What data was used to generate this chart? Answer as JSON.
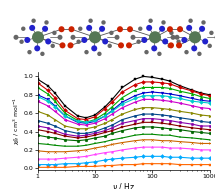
{
  "xlabel": "ν / Hz",
  "ylabel": "χ_M'' / cm³ mol⁻¹",
  "xlim": [
    1,
    1000
  ],
  "ylim": [
    -0.02,
    1.05
  ],
  "background_color": "#ffffff",
  "curves": [
    {
      "color": "#000000",
      "x": [
        1,
        1.5,
        2,
        3,
        5,
        7,
        10,
        15,
        20,
        30,
        50,
        70,
        100,
        150,
        200,
        300,
        500,
        700,
        1000
      ],
      "y": [
        0.97,
        0.9,
        0.82,
        0.68,
        0.57,
        0.55,
        0.58,
        0.67,
        0.75,
        0.88,
        0.97,
        1.0,
        0.99,
        0.97,
        0.95,
        0.9,
        0.85,
        0.82,
        0.8
      ]
    },
    {
      "color": "#cc0000",
      "x": [
        1,
        1.5,
        2,
        3,
        5,
        7,
        10,
        15,
        20,
        30,
        50,
        70,
        100,
        150,
        200,
        300,
        500,
        700,
        1000
      ],
      "y": [
        0.93,
        0.85,
        0.77,
        0.63,
        0.54,
        0.53,
        0.56,
        0.65,
        0.72,
        0.83,
        0.91,
        0.94,
        0.94,
        0.93,
        0.92,
        0.88,
        0.84,
        0.81,
        0.79
      ]
    },
    {
      "color": "#00aa00",
      "x": [
        1,
        1.5,
        2,
        3,
        5,
        7,
        10,
        15,
        20,
        30,
        50,
        70,
        100,
        150,
        200,
        300,
        500,
        700,
        1000
      ],
      "y": [
        0.88,
        0.81,
        0.73,
        0.6,
        0.52,
        0.5,
        0.53,
        0.6,
        0.67,
        0.77,
        0.85,
        0.88,
        0.88,
        0.88,
        0.87,
        0.84,
        0.81,
        0.78,
        0.76
      ]
    },
    {
      "color": "#0000cc",
      "x": [
        1,
        1.5,
        2,
        3,
        5,
        7,
        10,
        15,
        20,
        30,
        50,
        70,
        100,
        150,
        200,
        300,
        500,
        700,
        1000
      ],
      "y": [
        0.8,
        0.75,
        0.68,
        0.57,
        0.5,
        0.49,
        0.51,
        0.57,
        0.63,
        0.72,
        0.79,
        0.82,
        0.83,
        0.82,
        0.81,
        0.79,
        0.76,
        0.74,
        0.73
      ]
    },
    {
      "color": "#00cccc",
      "x": [
        1,
        1.5,
        2,
        3,
        5,
        7,
        10,
        15,
        20,
        30,
        50,
        70,
        100,
        150,
        200,
        300,
        500,
        700,
        1000
      ],
      "y": [
        0.78,
        0.73,
        0.67,
        0.57,
        0.51,
        0.5,
        0.52,
        0.57,
        0.62,
        0.7,
        0.76,
        0.79,
        0.79,
        0.79,
        0.78,
        0.76,
        0.73,
        0.72,
        0.71
      ]
    },
    {
      "color": "#cc00cc",
      "x": [
        1,
        1.5,
        2,
        3,
        5,
        7,
        10,
        15,
        20,
        30,
        50,
        70,
        100,
        150,
        200,
        300,
        500,
        700,
        1000
      ],
      "y": [
        0.73,
        0.68,
        0.62,
        0.53,
        0.48,
        0.47,
        0.49,
        0.54,
        0.59,
        0.66,
        0.72,
        0.75,
        0.75,
        0.74,
        0.73,
        0.71,
        0.68,
        0.66,
        0.65
      ]
    },
    {
      "color": "#888800",
      "x": [
        1,
        1.5,
        2,
        3,
        5,
        7,
        10,
        15,
        20,
        30,
        50,
        70,
        100,
        150,
        200,
        300,
        500,
        700,
        1000
      ],
      "y": [
        0.62,
        0.58,
        0.53,
        0.46,
        0.43,
        0.43,
        0.45,
        0.49,
        0.53,
        0.59,
        0.64,
        0.66,
        0.66,
        0.65,
        0.64,
        0.62,
        0.6,
        0.58,
        0.57
      ]
    },
    {
      "color": "#004488",
      "x": [
        1,
        1.5,
        2,
        3,
        5,
        7,
        10,
        15,
        20,
        30,
        50,
        70,
        100,
        150,
        200,
        300,
        500,
        700,
        1000
      ],
      "y": [
        0.52,
        0.49,
        0.46,
        0.41,
        0.38,
        0.38,
        0.4,
        0.44,
        0.47,
        0.53,
        0.57,
        0.59,
        0.59,
        0.58,
        0.57,
        0.55,
        0.53,
        0.51,
        0.5
      ]
    },
    {
      "color": "#8800aa",
      "x": [
        1,
        1.5,
        2,
        3,
        5,
        7,
        10,
        15,
        20,
        30,
        50,
        70,
        100,
        150,
        200,
        300,
        500,
        700,
        1000
      ],
      "y": [
        0.46,
        0.44,
        0.41,
        0.37,
        0.35,
        0.36,
        0.38,
        0.41,
        0.44,
        0.49,
        0.52,
        0.54,
        0.54,
        0.53,
        0.52,
        0.5,
        0.48,
        0.46,
        0.46
      ]
    },
    {
      "color": "#880000",
      "x": [
        1,
        1.5,
        2,
        3,
        5,
        7,
        10,
        15,
        20,
        30,
        50,
        70,
        100,
        150,
        200,
        300,
        500,
        700,
        1000
      ],
      "y": [
        0.42,
        0.4,
        0.38,
        0.35,
        0.33,
        0.34,
        0.36,
        0.39,
        0.41,
        0.45,
        0.48,
        0.5,
        0.5,
        0.49,
        0.48,
        0.46,
        0.44,
        0.43,
        0.42
      ]
    },
    {
      "color": "#006600",
      "x": [
        1,
        1.5,
        2,
        3,
        5,
        7,
        10,
        15,
        20,
        30,
        50,
        70,
        100,
        150,
        200,
        300,
        500,
        700,
        1000
      ],
      "y": [
        0.36,
        0.34,
        0.33,
        0.31,
        0.3,
        0.31,
        0.33,
        0.35,
        0.38,
        0.41,
        0.44,
        0.45,
        0.45,
        0.44,
        0.43,
        0.42,
        0.4,
        0.39,
        0.38
      ]
    },
    {
      "color": "#008800",
      "x": [
        1,
        1.5,
        2,
        3,
        5,
        7,
        10,
        15,
        20,
        30,
        50,
        70,
        100,
        150,
        200,
        300,
        500,
        700,
        1000
      ],
      "y": [
        0.27,
        0.26,
        0.25,
        0.24,
        0.24,
        0.25,
        0.27,
        0.29,
        0.31,
        0.33,
        0.36,
        0.37,
        0.37,
        0.36,
        0.36,
        0.34,
        0.33,
        0.32,
        0.31
      ]
    },
    {
      "color": "#cc6600",
      "x": [
        1,
        1.5,
        2,
        3,
        5,
        7,
        10,
        15,
        20,
        30,
        50,
        70,
        100,
        150,
        200,
        300,
        500,
        700,
        1000
      ],
      "y": [
        0.19,
        0.18,
        0.18,
        0.18,
        0.19,
        0.2,
        0.22,
        0.24,
        0.26,
        0.28,
        0.3,
        0.31,
        0.31,
        0.3,
        0.3,
        0.29,
        0.28,
        0.27,
        0.27
      ]
    },
    {
      "color": "#ff44ff",
      "x": [
        1,
        1.5,
        2,
        3,
        5,
        7,
        10,
        15,
        20,
        30,
        50,
        70,
        100,
        150,
        200,
        300,
        500,
        700,
        1000
      ],
      "y": [
        0.1,
        0.1,
        0.1,
        0.11,
        0.12,
        0.13,
        0.15,
        0.17,
        0.18,
        0.2,
        0.22,
        0.23,
        0.23,
        0.23,
        0.22,
        0.22,
        0.21,
        0.2,
        0.2
      ]
    },
    {
      "color": "#00aaff",
      "x": [
        1,
        1.5,
        2,
        3,
        5,
        7,
        10,
        15,
        20,
        30,
        50,
        70,
        100,
        150,
        200,
        300,
        500,
        700,
        1000
      ],
      "y": [
        0.04,
        0.04,
        0.04,
        0.05,
        0.05,
        0.06,
        0.07,
        0.09,
        0.1,
        0.11,
        0.12,
        0.13,
        0.13,
        0.13,
        0.12,
        0.12,
        0.11,
        0.11,
        0.11
      ]
    },
    {
      "color": "#ff6600",
      "x": [
        1,
        1.5,
        2,
        3,
        5,
        7,
        10,
        15,
        20,
        30,
        50,
        70,
        100,
        150,
        200,
        300,
        500,
        700,
        1000
      ],
      "y": [
        0.01,
        0.01,
        0.01,
        0.01,
        0.02,
        0.02,
        0.02,
        0.03,
        0.03,
        0.04,
        0.04,
        0.05,
        0.05,
        0.05,
        0.05,
        0.04,
        0.04,
        0.04,
        0.04
      ]
    }
  ],
  "struct": {
    "dy_color": "#448844",
    "n_color": "#2222cc",
    "o_color": "#cc2200",
    "c_color": "#666666",
    "bond_color": "#555555"
  }
}
